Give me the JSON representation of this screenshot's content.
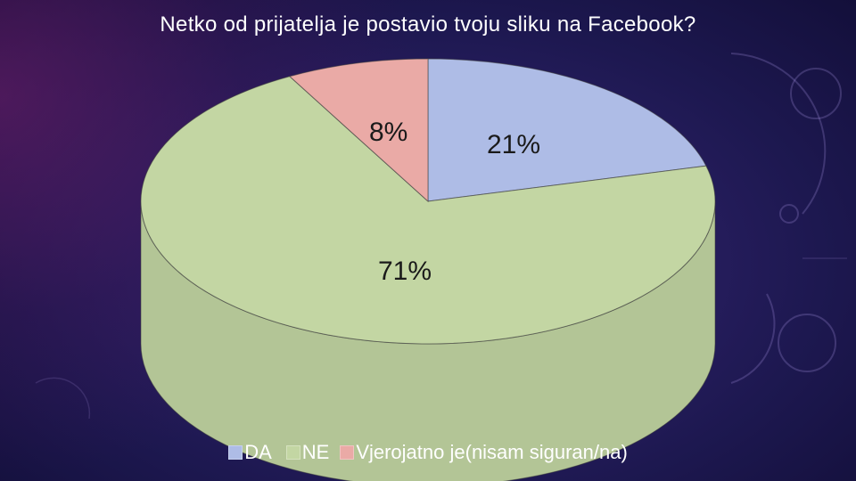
{
  "chart_data": {
    "type": "pie",
    "title": "Netko od prijatelja je postavio tvoju sliku na Facebook?",
    "categories": [
      "DA",
      "NE",
      "Vjerojatno je(nisam siguran/na)"
    ],
    "values": [
      21,
      71,
      8
    ],
    "labels": [
      "21%",
      "71%",
      "8%"
    ],
    "colors": [
      "#aebce6",
      "#c3d6a3",
      "#eaaaa6"
    ],
    "legend_position": "bottom",
    "style": "3d"
  }
}
